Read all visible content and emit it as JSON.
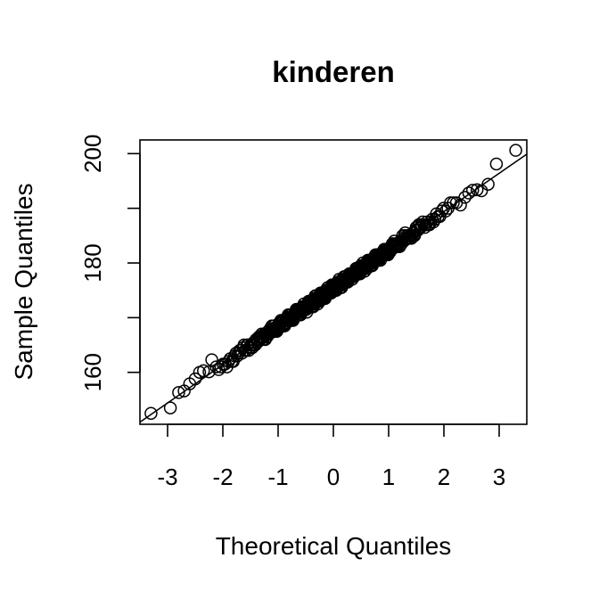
{
  "chart_data": {
    "type": "scatter",
    "subtype": "qq-plot",
    "title": "kinderen",
    "xlabel": "Theoretical Quantiles",
    "ylabel": "Sample Quantiles",
    "xlim": [
      -3.5,
      3.5
    ],
    "ylim": [
      150.5,
      202.5
    ],
    "x_ticks": [
      -3,
      -2,
      -1,
      0,
      1,
      2,
      3
    ],
    "y_ticks": [
      160,
      180,
      200
    ],
    "y_minor_ticks": [
      170,
      190
    ],
    "grid": false,
    "legend": "none",
    "point_style": "open-circle",
    "reference_line": {
      "intercept": 175.4,
      "slope": 7.0
    },
    "n_points": 500,
    "tail_points": [
      {
        "x": -3.3,
        "y": 152.5
      },
      {
        "x": -2.95,
        "y": 153.5
      },
      {
        "x": -2.8,
        "y": 156.3
      },
      {
        "x": -2.7,
        "y": 156.6
      },
      {
        "x": -2.6,
        "y": 157.9
      },
      {
        "x": -2.5,
        "y": 158.8
      },
      {
        "x": -2.42,
        "y": 160.0
      },
      {
        "x": -2.35,
        "y": 160.3
      },
      {
        "x": -2.25,
        "y": 160.1
      },
      {
        "x": -2.2,
        "y": 162.3
      },
      {
        "x": 2.3,
        "y": 190.6
      },
      {
        "x": 2.38,
        "y": 192.0
      },
      {
        "x": 2.45,
        "y": 192.8
      },
      {
        "x": 2.52,
        "y": 193.3
      },
      {
        "x": 2.6,
        "y": 193.4
      },
      {
        "x": 2.68,
        "y": 193.2
      },
      {
        "x": 2.8,
        "y": 194.4
      },
      {
        "x": 2.95,
        "y": 198.1
      },
      {
        "x": 3.3,
        "y": 200.6
      }
    ]
  }
}
